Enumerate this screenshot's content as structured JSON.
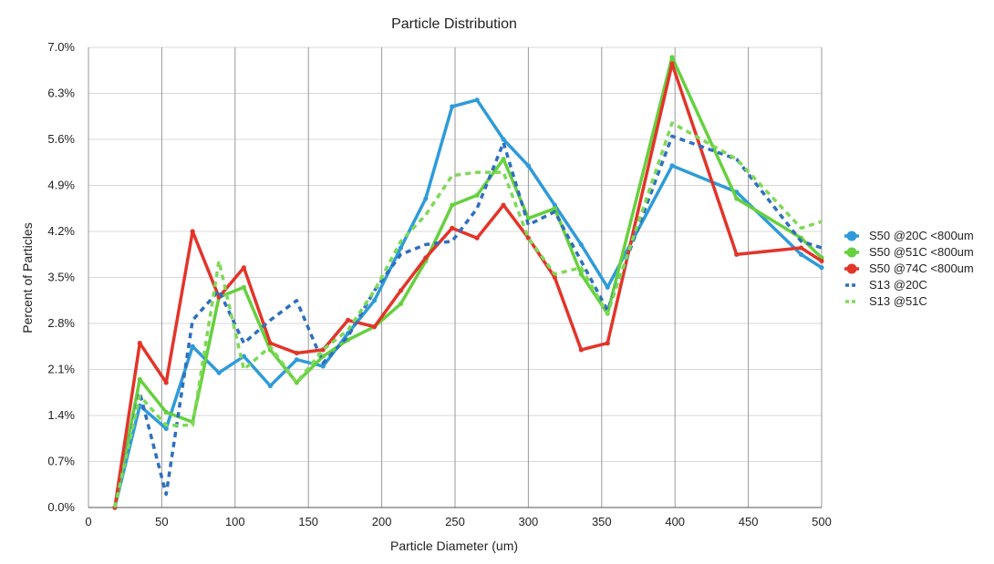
{
  "chart_data": {
    "type": "line",
    "title": "Particle Distribution",
    "xlabel": "Particle Diameter (um)",
    "ylabel": "Percent of Particles",
    "xlim": [
      0,
      500
    ],
    "ylim": [
      0,
      7.0
    ],
    "xticks": [
      0,
      50,
      100,
      150,
      200,
      250,
      300,
      350,
      400,
      450,
      500
    ],
    "yticks": [
      "0.0%",
      "0.7%",
      "1.4%",
      "2.1%",
      "2.8%",
      "3.5%",
      "4.2%",
      "4.9%",
      "5.6%",
      "6.3%",
      "7.0%"
    ],
    "grid": "vertical",
    "legend_position": "right",
    "series": [
      {
        "name": "S50 @20C <800um",
        "color": "#2e9bd9",
        "style": "solid",
        "markers": true,
        "x": [
          18,
          35,
          53,
          71,
          89,
          106,
          124,
          142,
          160,
          177,
          195,
          213,
          230,
          248,
          265,
          283,
          300,
          318,
          336,
          354,
          398,
          442,
          486,
          500
        ],
        "y": [
          0.0,
          1.55,
          1.2,
          2.45,
          2.05,
          2.3,
          1.85,
          2.25,
          2.15,
          2.65,
          3.15,
          3.95,
          4.7,
          6.1,
          6.2,
          5.6,
          5.2,
          4.6,
          4.0,
          3.35,
          5.2,
          4.8,
          3.85,
          3.65
        ]
      },
      {
        "name": "S50 @51C <800um",
        "color": "#66d03e",
        "style": "solid",
        "markers": true,
        "x": [
          18,
          35,
          53,
          71,
          89,
          106,
          124,
          142,
          160,
          177,
          195,
          213,
          230,
          248,
          265,
          283,
          300,
          318,
          336,
          354,
          398,
          442,
          486,
          500
        ],
        "y": [
          0.0,
          1.95,
          1.45,
          1.3,
          3.2,
          3.35,
          2.4,
          1.9,
          2.3,
          2.55,
          2.75,
          3.1,
          3.75,
          4.6,
          4.75,
          5.3,
          4.4,
          4.55,
          3.55,
          2.95,
          6.85,
          4.7,
          4.1,
          3.8
        ]
      },
      {
        "name": "S50 @74C <800um",
        "color": "#e3342a",
        "style": "solid",
        "markers": true,
        "x": [
          18,
          35,
          53,
          71,
          89,
          106,
          124,
          142,
          160,
          177,
          195,
          213,
          230,
          248,
          265,
          283,
          300,
          318,
          336,
          354,
          398,
          442,
          486,
          500
        ],
        "y": [
          0.0,
          2.5,
          1.9,
          4.2,
          3.2,
          3.65,
          2.5,
          2.35,
          2.4,
          2.85,
          2.75,
          3.3,
          3.8,
          4.25,
          4.1,
          4.6,
          4.1,
          3.5,
          2.4,
          2.5,
          6.75,
          3.85,
          3.95,
          3.75
        ]
      },
      {
        "name": "S13 @20C",
        "color": "#2f6fbf",
        "style": "dashed",
        "markers": false,
        "x": [
          18,
          35,
          53,
          71,
          89,
          106,
          124,
          142,
          160,
          177,
          195,
          213,
          230,
          248,
          265,
          283,
          300,
          318,
          336,
          354,
          398,
          442,
          486,
          500
        ],
        "y": [
          0.0,
          1.75,
          0.2,
          2.85,
          3.3,
          2.5,
          2.85,
          3.15,
          2.2,
          2.6,
          3.3,
          3.85,
          4.0,
          4.05,
          4.55,
          5.55,
          4.3,
          4.5,
          3.75,
          3.0,
          5.65,
          5.3,
          4.05,
          3.95
        ]
      },
      {
        "name": "S13 @51C",
        "color": "#7ed957",
        "style": "dashed",
        "markers": false,
        "x": [
          18,
          35,
          53,
          71,
          89,
          106,
          124,
          142,
          160,
          177,
          195,
          213,
          230,
          248,
          265,
          283,
          300,
          318,
          336,
          354,
          398,
          442,
          486,
          500
        ],
        "y": [
          0.0,
          1.7,
          1.25,
          1.25,
          3.75,
          2.1,
          2.45,
          1.9,
          2.4,
          2.7,
          3.3,
          4.05,
          4.45,
          5.05,
          5.1,
          5.1,
          4.1,
          3.55,
          3.65,
          2.95,
          5.85,
          5.3,
          4.25,
          4.35
        ]
      }
    ]
  }
}
